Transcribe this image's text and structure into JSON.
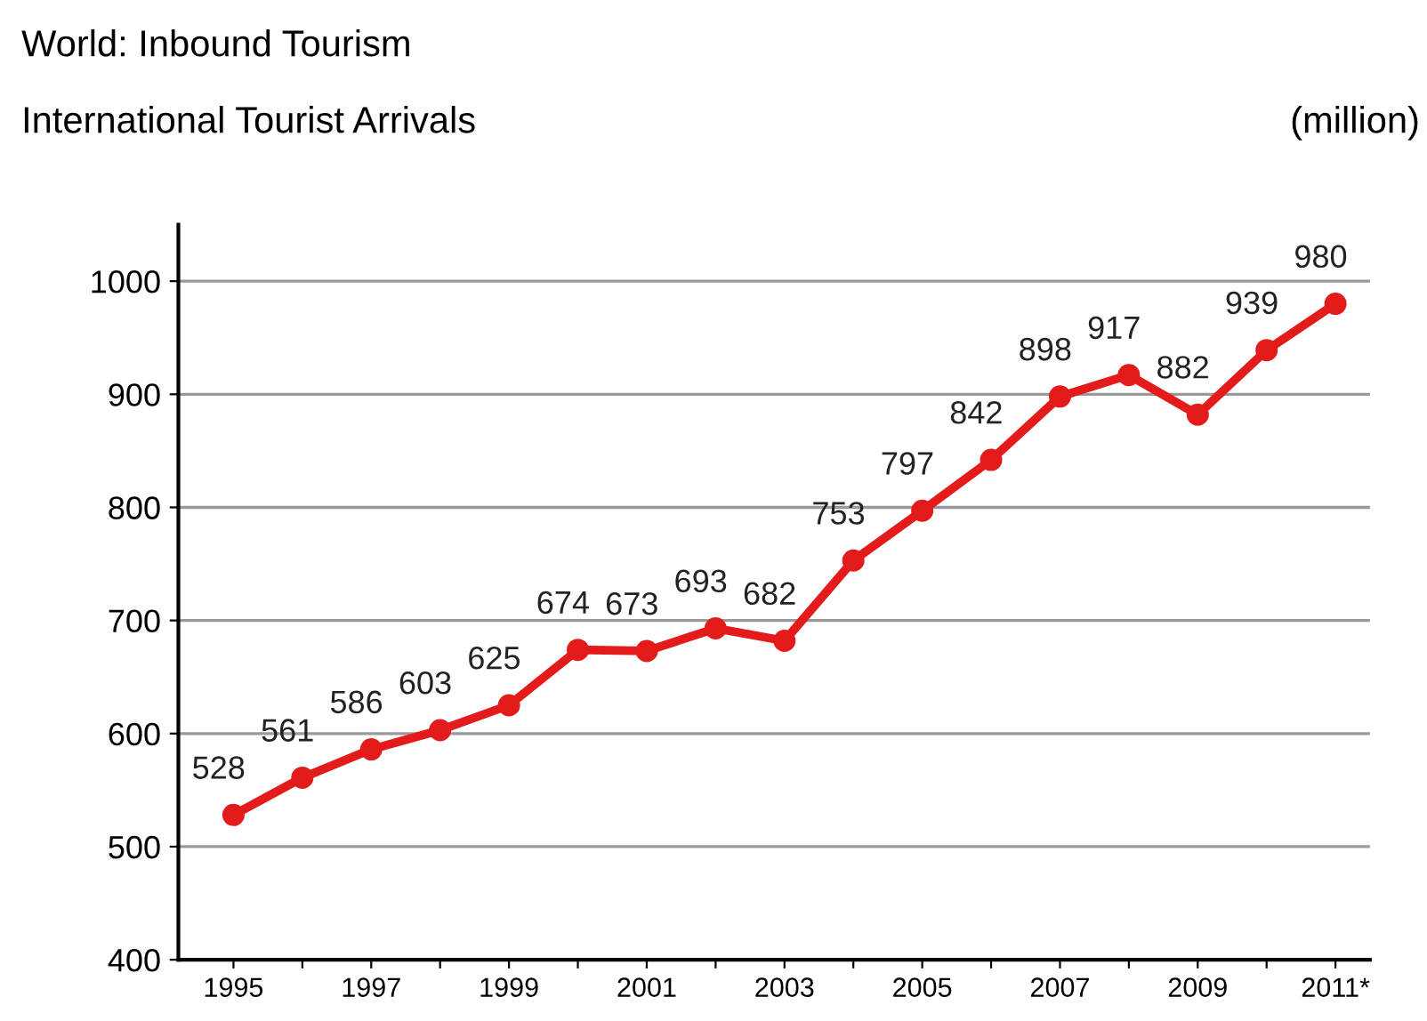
{
  "chart_data": {
    "type": "line",
    "title": "World: Inbound Tourism",
    "subtitle": "International Tourist Arrivals",
    "ylabel": "(million)",
    "categories": [
      "1995",
      null,
      "1997",
      null,
      "1999",
      null,
      "2001",
      null,
      "2003",
      null,
      "2005",
      null,
      "2007",
      null,
      "2009",
      null,
      "2011*"
    ],
    "series": [
      {
        "color": "#e31b1b",
        "values": [
          528,
          561,
          586,
          603,
          625,
          674,
          673,
          693,
          682,
          753,
          797,
          842,
          898,
          917,
          882,
          939,
          980
        ]
      }
    ],
    "ylim": [
      400,
      1050
    ],
    "yticks": [
      400,
      500,
      600,
      700,
      800,
      900,
      1000
    ],
    "grid": "y",
    "marker": "circle",
    "line_style": "solid",
    "data_labels": true,
    "legend": false
  }
}
